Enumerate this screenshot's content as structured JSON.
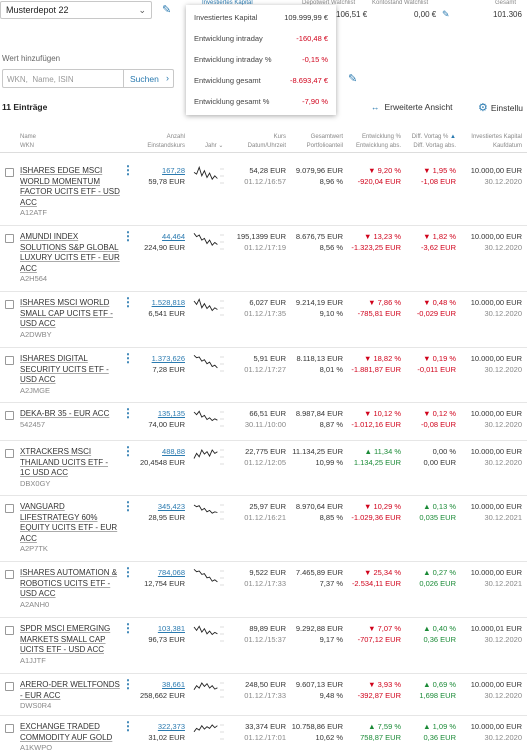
{
  "header": {
    "depot_name": "Musterdepot 22",
    "col_invest": "Investiertes Kapital",
    "col_depot": "Depotwert Watchlist",
    "col_konto": "Kontostand Watchlist",
    "col_gesamt": "Gesamt",
    "val_depot": "106,51 €",
    "val_konto": "0,00 €",
    "val_gesamt": "101.306"
  },
  "popup": {
    "rows": [
      {
        "label": "Investiertes Kapital",
        "value": "109.999,99 €",
        "sign": "pos"
      },
      {
        "label": "Entwicklung intraday",
        "value": "-160,48 €",
        "sign": "neg"
      },
      {
        "label": "Entwicklung intraday %",
        "value": "-0,15 %",
        "sign": "neg"
      },
      {
        "label": "Entwicklung gesamt",
        "value": "-8.693,47 €",
        "sign": "neg"
      },
      {
        "label": "Entwicklung gesamt %",
        "value": "-7,90 %",
        "sign": "neg"
      }
    ]
  },
  "search": {
    "label": "Wert hinzufügen",
    "placeholder": "WKN,  Name, ISIN",
    "button": "Suchen"
  },
  "toolbar": {
    "entries": "11 Einträge",
    "advanced": "Erweiterte Ansicht",
    "settings": "Einstellu"
  },
  "columns": {
    "name": "Name",
    "wkn": "WKN",
    "anzahl": "Anzahl",
    "einstand": "Einstandskurs",
    "jahr": "Jahr",
    "kurs": "Kurs",
    "datum": "Datum/Uhrzeit",
    "gesamtwert": "Gesamtwert",
    "portfolioanteil": "Portfolioanteil",
    "entw_pct": "Entwicklung %",
    "entw_abs": "Entwicklung abs.",
    "diff_pct": "Diff. Vortag %",
    "diff_abs": "Diff. Vortag abs.",
    "invest": "Investiertes Kapital",
    "kaufdatum": "Kaufdatum"
  },
  "rows": [
    {
      "name": "ISHARES EDGE MSCI WORLD MOMENTUM FACTOR UCITS ETF - USD ACC",
      "wkn": "A12ATF",
      "anzahl": "167,28",
      "einstand": "59,78 EUR",
      "kurs": "54,28 EUR",
      "datum": "01.12./16:57",
      "gesamtwert": "9.079,96 EUR",
      "anteil": "8,96 %",
      "entw_pct": "9,20 %",
      "entw_abs": "-920,04 EUR",
      "entw_dir": "down",
      "diff_pct": "1,95 %",
      "diff_abs": "-1,08 EUR",
      "diff_dir": "down",
      "invest": "10.000,00 EUR",
      "kaufdatum": "30.12.2020",
      "spark": [
        40,
        35,
        55,
        30,
        45,
        25,
        38,
        20,
        30,
        22
      ]
    },
    {
      "name": "AMUNDI INDEX SOLUTIONS S&P GLOBAL LUXURY UCITS ETF - EUR ACC",
      "wkn": "A2H564",
      "anzahl": "44,464",
      "einstand": "224,90 EUR",
      "kurs": "195,1399 EUR",
      "datum": "01.12./17:19",
      "gesamtwert": "8.676,75 EUR",
      "anteil": "8,56 %",
      "entw_pct": "13,23 %",
      "entw_abs": "-1.323,25 EUR",
      "entw_dir": "down",
      "diff_pct": "1,82 %",
      "diff_abs": "-3,62 EUR",
      "diff_dir": "down",
      "invest": "10.000,00 EUR",
      "kaufdatum": "30.12.2020",
      "spark": [
        55,
        45,
        50,
        35,
        40,
        25,
        35,
        20,
        28,
        22
      ]
    },
    {
      "name": "ISHARES MSCI WORLD SMALL CAP UCITS ETF - USD ACC",
      "wkn": "A2DWBY",
      "anzahl": "1.528,818",
      "einstand": "6,541 EUR",
      "kurs": "6,027 EUR",
      "datum": "01.12./17:35",
      "gesamtwert": "9.214,19 EUR",
      "anteil": "9,10 %",
      "entw_pct": "7,86 %",
      "entw_abs": "-785,81 EUR",
      "entw_dir": "down",
      "diff_pct": "0,48 %",
      "diff_abs": "-0,029 EUR",
      "diff_dir": "down",
      "invest": "10.000,00 EUR",
      "kaufdatum": "30.12.2020",
      "spark": [
        50,
        40,
        55,
        30,
        42,
        28,
        36,
        22,
        30,
        25
      ]
    },
    {
      "name": "ISHARES DIGITAL SECURITY UCITS ETF - USD ACC",
      "wkn": "A2JMGE",
      "anzahl": "1.373,626",
      "einstand": "7,28 EUR",
      "kurs": "5,91 EUR",
      "datum": "01.12./17:27",
      "gesamtwert": "8.118,13 EUR",
      "anteil": "8,01 %",
      "entw_pct": "18,82 %",
      "entw_abs": "-1.881,87 EUR",
      "entw_dir": "down",
      "diff_pct": "0,19 %",
      "diff_abs": "-0,011 EUR",
      "diff_dir": "down",
      "invest": "10.000,00 EUR",
      "kaufdatum": "30.12.2020",
      "spark": [
        55,
        48,
        50,
        38,
        42,
        30,
        35,
        22,
        26,
        18
      ]
    },
    {
      "name": "DEKA-BR 35 - EUR ACC",
      "wkn": "542457",
      "anzahl": "135,135",
      "einstand": "74,00 EUR",
      "kurs": "66,51 EUR",
      "datum": "30.11./10:00",
      "gesamtwert": "8.987,84 EUR",
      "anteil": "8,87 %",
      "entw_pct": "10,12 %",
      "entw_abs": "-1.012,16 EUR",
      "entw_dir": "down",
      "diff_pct": "0,12 %",
      "diff_abs": "-0,08 EUR",
      "diff_dir": "down",
      "invest": "10.000,00 EUR",
      "kaufdatum": "30.12.2020",
      "spark": [
        50,
        42,
        52,
        35,
        40,
        28,
        33,
        25,
        30,
        26
      ]
    },
    {
      "name": "XTRACKERS MSCI THAILAND UCITS ETF - 1C USD ACC",
      "wkn": "DBX0GY",
      "anzahl": "488,88",
      "einstand": "20,4548 EUR",
      "kurs": "22,775 EUR",
      "datum": "01.12./12:05",
      "gesamtwert": "11.134,25 EUR",
      "anteil": "10,99 %",
      "entw_pct": "11,34 %",
      "entw_abs": "1.134,25 EUR",
      "entw_dir": "up",
      "diff_pct": "0,00 %",
      "diff_abs": "0,00 EUR",
      "diff_dir": "none",
      "invest": "10.000,00 EUR",
      "kaufdatum": "30.12.2020",
      "spark": [
        25,
        40,
        30,
        50,
        38,
        45,
        32,
        50,
        40,
        45
      ]
    },
    {
      "name": "VANGUARD LIFESTRATEGY 60% EQUITY UCITS ETF - EUR ACC",
      "wkn": "A2P7TK",
      "anzahl": "345,423",
      "einstand": "28,95 EUR",
      "kurs": "25,97 EUR",
      "datum": "01.12./16:21",
      "gesamtwert": "8.970,64 EUR",
      "anteil": "8,85 %",
      "entw_pct": "10,29 %",
      "entw_abs": "-1.029,36 EUR",
      "entw_dir": "down",
      "diff_pct": "0,13 %",
      "diff_abs": "0,035 EUR",
      "diff_dir": "up",
      "invest": "10.000,00 EUR",
      "kaufdatum": "30.12.2021",
      "spark": [
        50,
        45,
        48,
        35,
        40,
        30,
        34,
        26,
        30,
        28
      ]
    },
    {
      "name": "ISHARES AUTOMATION & ROBOTICS UCITS ETF - USD ACC",
      "wkn": "A2ANH0",
      "anzahl": "784,068",
      "einstand": "12,754 EUR",
      "kurs": "9,522 EUR",
      "datum": "01.12./17:33",
      "gesamtwert": "7.465,89 EUR",
      "anteil": "7,37 %",
      "entw_pct": "25,34 %",
      "entw_abs": "-2.534,11 EUR",
      "entw_dir": "down",
      "diff_pct": "0,27 %",
      "diff_abs": "0,026 EUR",
      "diff_dir": "up",
      "invest": "10.000,00 EUR",
      "kaufdatum": "30.12.2021",
      "spark": [
        55,
        48,
        50,
        40,
        42,
        30,
        32,
        20,
        24,
        18
      ]
    },
    {
      "name": "SPDR MSCI EMERGING MARKETS SMALL CAP UCITS ETF - USD ACC",
      "wkn": "A1JJTF",
      "anzahl": "103,381",
      "einstand": "96,73 EUR",
      "kurs": "89,89 EUR",
      "datum": "01.12./15:37",
      "gesamtwert": "9.292,88 EUR",
      "anteil": "9,17 %",
      "entw_pct": "7,07 %",
      "entw_abs": "-707,12 EUR",
      "entw_dir": "down",
      "diff_pct": "0,40 %",
      "diff_abs": "0,36 EUR",
      "diff_dir": "up",
      "invest": "10.000,01 EUR",
      "kaufdatum": "30.12.2020",
      "spark": [
        50,
        40,
        52,
        35,
        45,
        30,
        38,
        28,
        34,
        30
      ]
    },
    {
      "name": "ARERO-DER WELTFONDS - EUR ACC",
      "wkn": "DWS0R4",
      "anzahl": "38,661",
      "einstand": "258,662 EUR",
      "kurs": "248,50 EUR",
      "datum": "01.12./17:33",
      "gesamtwert": "9.607,13 EUR",
      "anteil": "9,48 %",
      "entw_pct": "3,93 %",
      "entw_abs": "-392,87 EUR",
      "entw_dir": "down",
      "diff_pct": "0,69 %",
      "diff_abs": "1,698 EUR",
      "diff_dir": "up",
      "invest": "10.000,00 EUR",
      "kaufdatum": "30.12.2020",
      "spark": [
        30,
        42,
        35,
        50,
        40,
        48,
        35,
        42,
        32,
        36
      ]
    },
    {
      "name": "EXCHANGE TRADED COMMODITY AUF GOLD",
      "wkn": "A1KWPQ",
      "anzahl": "322,373",
      "einstand": "31,02 EUR",
      "kurs": "33,374 EUR",
      "datum": "01.12./17:01",
      "gesamtwert": "10.758,86 EUR",
      "anteil": "10,62 %",
      "entw_pct": "7,59 %",
      "entw_abs": "758,87 EUR",
      "entw_dir": "up",
      "diff_pct": "1,09 %",
      "diff_abs": "0,36 EUR",
      "diff_dir": "up",
      "invest": "10.000,00 EUR",
      "kaufdatum": "30.12.2020",
      "spark": [
        30,
        40,
        35,
        48,
        38,
        45,
        40,
        50,
        42,
        48
      ]
    }
  ],
  "colors": {
    "accent": "#2a7ab0",
    "negative": "#d0021b",
    "positive": "#1a8a36"
  }
}
